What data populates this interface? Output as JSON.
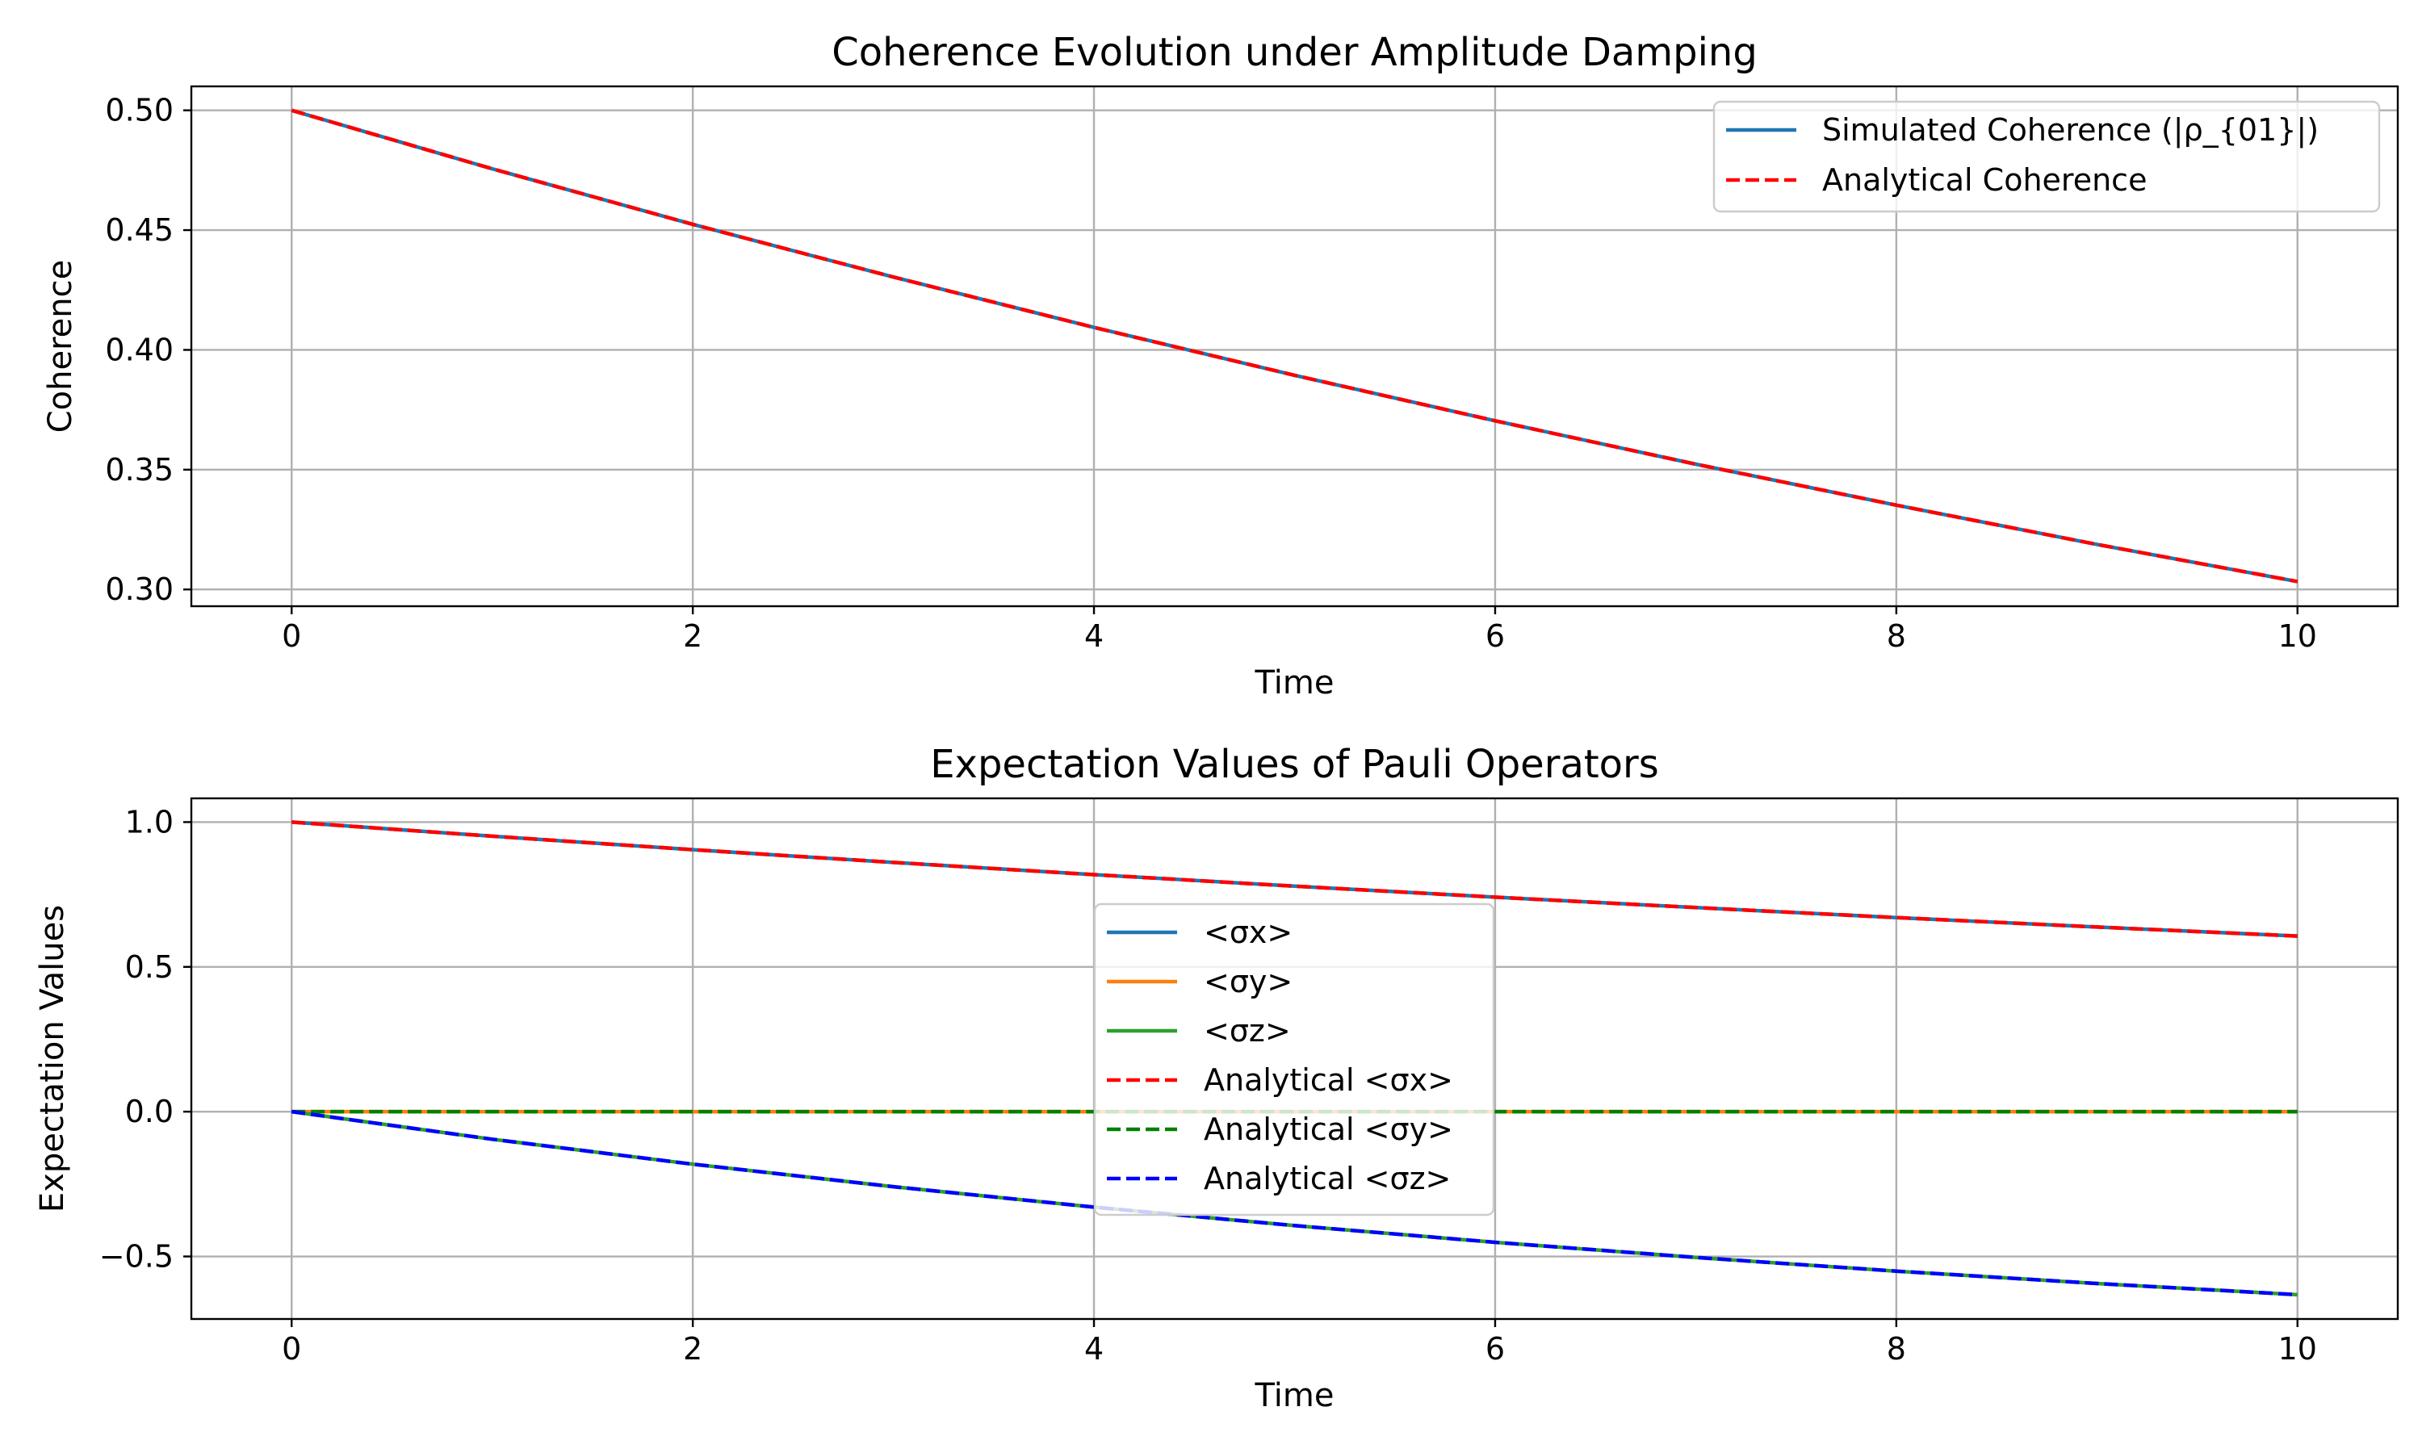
{
  "chart_data": [
    {
      "type": "line",
      "title": "Coherence Evolution under Amplitude Damping",
      "xlabel": "Time",
      "ylabel": "Coherence",
      "xlim": [
        -0.5,
        10.5
      ],
      "ylim": [
        0.293,
        0.51
      ],
      "xticks": [
        0,
        2,
        4,
        6,
        8,
        10
      ],
      "xtick_labels": [
        "0",
        "2",
        "4",
        "6",
        "8",
        "10"
      ],
      "yticks": [
        0.3,
        0.35,
        0.4,
        0.45,
        0.5
      ],
      "ytick_labels": [
        "0.30",
        "0.35",
        "0.40",
        "0.45",
        "0.50"
      ],
      "grid": true,
      "legend": "top-right",
      "series": [
        {
          "name": "Simulated Coherence (|ρ_{01}|)",
          "color": "#1f77b4",
          "dash": "solid",
          "x": [
            0,
            1,
            2,
            3,
            4,
            5,
            6,
            7,
            8,
            9,
            10
          ],
          "values": [
            0.5,
            0.4756,
            0.4524,
            0.4304,
            0.4094,
            0.3894,
            0.3704,
            0.3523,
            0.3352,
            0.3188,
            0.3033
          ]
        },
        {
          "name": "Analytical Coherence",
          "color": "#ff0000",
          "dash": "dashed",
          "x": [
            0,
            1,
            2,
            3,
            4,
            5,
            6,
            7,
            8,
            9,
            10
          ],
          "values": [
            0.5,
            0.4756,
            0.4524,
            0.4304,
            0.4094,
            0.3894,
            0.3704,
            0.3523,
            0.3352,
            0.3188,
            0.3033
          ]
        }
      ]
    },
    {
      "type": "line",
      "title": "Expectation Values of Pauli Operators",
      "xlabel": "Time",
      "ylabel": "Expectation Values",
      "xlim": [
        -0.5,
        10.5
      ],
      "ylim": [
        -0.716,
        1.082
      ],
      "xticks": [
        0,
        2,
        4,
        6,
        8,
        10
      ],
      "xtick_labels": [
        "0",
        "2",
        "4",
        "6",
        "8",
        "10"
      ],
      "yticks": [
        -0.5,
        0.0,
        0.5,
        1.0
      ],
      "ytick_labels": [
        "−0.5",
        "0.0",
        "0.5",
        "1.0"
      ],
      "grid": true,
      "legend": "center",
      "series": [
        {
          "name": "<σx>",
          "color": "#1f77b4",
          "dash": "solid",
          "x": [
            0,
            1,
            2,
            3,
            4,
            5,
            6,
            7,
            8,
            9,
            10
          ],
          "values": [
            1.0,
            0.9512,
            0.9048,
            0.8607,
            0.8187,
            0.7788,
            0.7408,
            0.7047,
            0.6703,
            0.6376,
            0.6065
          ]
        },
        {
          "name": "<σy>",
          "color": "#ff7f0e",
          "dash": "solid",
          "x": [
            0,
            1,
            2,
            3,
            4,
            5,
            6,
            7,
            8,
            9,
            10
          ],
          "values": [
            0,
            0,
            0,
            0,
            0,
            0,
            0,
            0,
            0,
            0,
            0
          ]
        },
        {
          "name": "<σz>",
          "color": "#2ca02c",
          "dash": "solid",
          "x": [
            0,
            1,
            2,
            3,
            4,
            5,
            6,
            7,
            8,
            9,
            10
          ],
          "values": [
            0,
            -0.0952,
            -0.1813,
            -0.2592,
            -0.3297,
            -0.3935,
            -0.4512,
            -0.5034,
            -0.5507,
            -0.5934,
            -0.6321
          ]
        },
        {
          "name": "Analytical <σx>",
          "color": "#ff0000",
          "dash": "dashed",
          "x": [
            0,
            1,
            2,
            3,
            4,
            5,
            6,
            7,
            8,
            9,
            10
          ],
          "values": [
            1.0,
            0.9512,
            0.9048,
            0.8607,
            0.8187,
            0.7788,
            0.7408,
            0.7047,
            0.6703,
            0.6376,
            0.6065
          ]
        },
        {
          "name": "Analytical <σy>",
          "color": "#008000",
          "dash": "dashed",
          "x": [
            0,
            1,
            2,
            3,
            4,
            5,
            6,
            7,
            8,
            9,
            10
          ],
          "values": [
            0,
            0,
            0,
            0,
            0,
            0,
            0,
            0,
            0,
            0,
            0
          ]
        },
        {
          "name": "Analytical <σz>",
          "color": "#0000ff",
          "dash": "dashed",
          "x": [
            0,
            1,
            2,
            3,
            4,
            5,
            6,
            7,
            8,
            9,
            10
          ],
          "values": [
            0,
            -0.0952,
            -0.1813,
            -0.2592,
            -0.3297,
            -0.3935,
            -0.4512,
            -0.5034,
            -0.5507,
            -0.5934,
            -0.6321
          ]
        }
      ]
    }
  ]
}
